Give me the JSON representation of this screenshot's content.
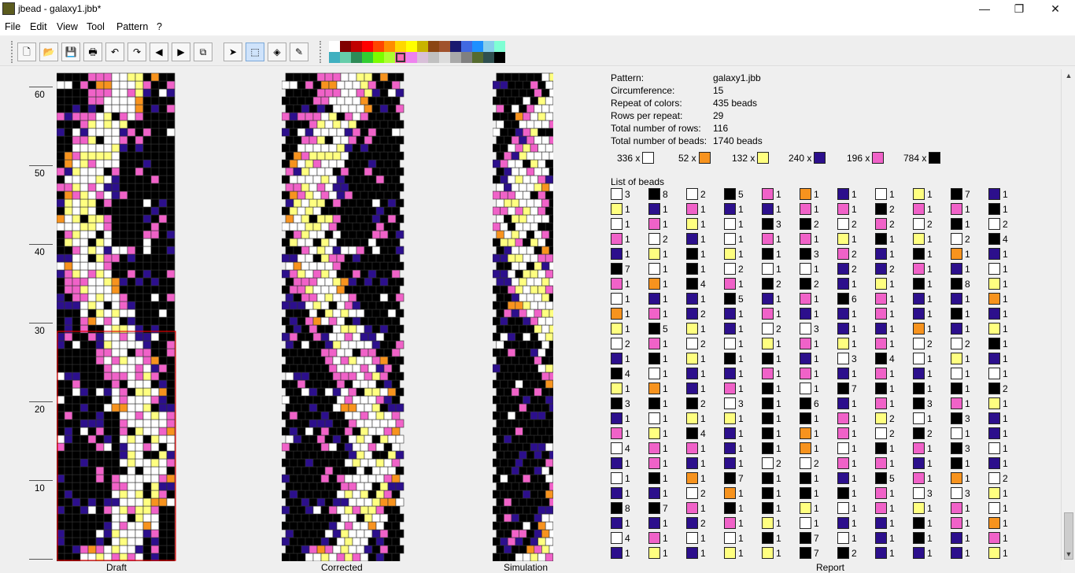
{
  "window": {
    "title": "jbead - galaxy1.jbb*",
    "minimize": "—",
    "maximize": "❐",
    "close": "✕"
  },
  "menu": [
    "File",
    "Edit",
    "View",
    "Tool",
    "Pattern",
    "?"
  ],
  "toolbar": {
    "icons": [
      "new-file-icon",
      "open-folder-icon",
      "save-icon",
      "print-icon",
      "undo-icon",
      "redo-icon",
      "arrow-left-icon",
      "arrow-right-icon",
      "copy-icon",
      "pointer-icon",
      "select-rect-icon",
      "fill-icon",
      "pipette-icon"
    ],
    "glyphs": [
      "🗋",
      "📂",
      "💾",
      "🖶",
      "↶",
      "↷",
      "◀",
      "▶",
      "⧉",
      "➤",
      "⬚",
      "◈",
      "✎"
    ],
    "selected": "select-rect-icon"
  },
  "palette": {
    "top": [
      "#ffffff",
      "#800000",
      "#c00000",
      "#ff0000",
      "#ff4500",
      "#ff8c00",
      "#ffd700",
      "#ffff00",
      "#c8b400",
      "#8b4513",
      "#a0522d",
      "#191970",
      "#4169e1",
      "#1e90ff",
      "#87ceeb",
      "#7fffd4"
    ],
    "bottom": [
      "#40b0c0",
      "#66cdaa",
      "#2e8b57",
      "#32cd32",
      "#7cfc00",
      "#adff2f",
      "#ff69b4",
      "#ee82ee",
      "#d8bfd8",
      "#c0c0c0",
      "#dcdcdc",
      "#a9a9a9",
      "#808080",
      "#556b2f",
      "#2f4f4f",
      "#000000"
    ],
    "selected_index": 6
  },
  "ruler": [
    "60",
    "50",
    "40",
    "30",
    "20",
    "10"
  ],
  "panels": {
    "draft": "Draft",
    "corrected": "Corrected",
    "simulation": "Simulation",
    "report": "Report"
  },
  "colors": {
    "white": "#ffffff",
    "orange": "#f7931e",
    "yellow": "#ffff80",
    "navy": "#2c0f8c",
    "pink": "#f062c8",
    "black": "#000000"
  },
  "report": {
    "rows": [
      {
        "k": "Pattern:",
        "v": "galaxy1.jbb"
      },
      {
        "k": "Circumference:",
        "v": "15"
      },
      {
        "k": "Repeat of colors:",
        "v": "435 beads"
      },
      {
        "k": "Rows per repeat:",
        "v": "29"
      },
      {
        "k": "Total number of rows:",
        "v": "116"
      },
      {
        "k": "Total number of beads:",
        "v": "1740 beads"
      }
    ],
    "counts": [
      {
        "n": "336 x",
        "c": "white"
      },
      {
        "n": "52 x",
        "c": "orange"
      },
      {
        "n": "132 x",
        "c": "yellow"
      },
      {
        "n": "240 x",
        "c": "navy"
      },
      {
        "n": "196 x",
        "c": "pink"
      },
      {
        "n": "784 x",
        "c": "black"
      }
    ],
    "list_title": "List of beads",
    "list": [
      [
        "W3",
        "Y1",
        "W1",
        "P1",
        "N1",
        "K7",
        "P1",
        "W1",
        "O1",
        "Y1",
        "W2",
        "N1",
        "K4",
        "Y1",
        "K3",
        "N1",
        "P1",
        "W4",
        "N1",
        "W1",
        "N1",
        "K8",
        "N1",
        "W4",
        "N1"
      ],
      [
        "K8",
        "N1",
        "P1",
        "W2",
        "Y1",
        "W1",
        "O1",
        "N1",
        "P1",
        "K5",
        "P1",
        "K1",
        "W1",
        "O1",
        "K1",
        "W1",
        "Y1",
        "P1",
        "P1",
        "K1",
        "N1",
        "K7",
        "N1",
        "P1",
        "Y1"
      ],
      [
        "W2",
        "P1",
        "Y1",
        "N1",
        "K1",
        "K1",
        "K4",
        "N1",
        "N2",
        "Y1",
        "W2",
        "Y1",
        "N1",
        "N1",
        "K2",
        "Y1",
        "K4",
        "P1",
        "N1",
        "O1",
        "W2",
        "P1",
        "N2",
        "W1",
        "N1"
      ],
      [
        "K5",
        "N1",
        "W1",
        "W1",
        "Y1",
        "W2",
        "P1",
        "K5",
        "N1",
        "N1",
        "W1",
        "K1",
        "N1",
        "P1",
        "W3",
        "Y1",
        "N1",
        "N1",
        "N1",
        "K7",
        "O1",
        "K1",
        "P1",
        "W1",
        "Y1"
      ],
      [
        "P1",
        "N1",
        "K3",
        "P1",
        "K1",
        "W1",
        "K2",
        "N1",
        "P1",
        "W2",
        "Y1",
        "K1",
        "P1",
        "K1",
        "K1",
        "K1",
        "K1",
        "K1",
        "W2",
        "K1",
        "K1",
        "K1",
        "Y1",
        "K1",
        "Y1"
      ],
      [
        "O1",
        "P1",
        "K2",
        "P1",
        "K3",
        "W1",
        "K2",
        "P1",
        "N1",
        "W3",
        "P1",
        "N1",
        "P1",
        "W1",
        "K6",
        "K1",
        "O1",
        "O1",
        "W2",
        "K1",
        "K1",
        "Y1",
        "W1",
        "K7",
        "K7"
      ],
      [
        "N1",
        "P1",
        "W2",
        "Y1",
        "P2",
        "N2",
        "N1",
        "K6",
        "N1",
        "N1",
        "Y1",
        "W3",
        "N1",
        "K7",
        "N1",
        "P1",
        "P1",
        "W1",
        "P1",
        "N1",
        "K1",
        "W1",
        "N1",
        "W1",
        "K2"
      ],
      [
        "W1",
        "K2",
        "P2",
        "K1",
        "N1",
        "N2",
        "Y1",
        "P1",
        "P1",
        "N1",
        "P1",
        "K4",
        "P1",
        "K1",
        "P1",
        "Y2",
        "W2",
        "K1",
        "P1",
        "K5",
        "P1",
        "P1",
        "N1",
        "N1",
        "N1"
      ],
      [
        "Y1",
        "P1",
        "W2",
        "Y1",
        "K1",
        "P1",
        "K1",
        "N1",
        "N1",
        "O1",
        "W2",
        "W1",
        "N1",
        "K1",
        "K3",
        "W1",
        "K2",
        "P1",
        "N1",
        "P1",
        "W3",
        "Y1",
        "K1",
        "K1",
        "N1"
      ],
      [
        "K7",
        "P1",
        "K1",
        "W2",
        "O1",
        "N1",
        "K8",
        "N1",
        "K1",
        "N1",
        "W2",
        "Y1",
        "W1",
        "K1",
        "P1",
        "K3",
        "W1",
        "K3",
        "K1",
        "O1",
        "W3",
        "P1",
        "P1",
        "N1",
        "N1"
      ],
      [
        "N1",
        "K1",
        "W2",
        "K4",
        "N1",
        "W1",
        "Y1",
        "O1",
        "N1",
        "Y1",
        "K1",
        "N1",
        "W1",
        "K2",
        "Y1",
        "N1",
        "N1",
        "W1",
        "N1",
        "W2",
        "Y1",
        "W1",
        "O1",
        "P1",
        "Y1"
      ]
    ]
  }
}
